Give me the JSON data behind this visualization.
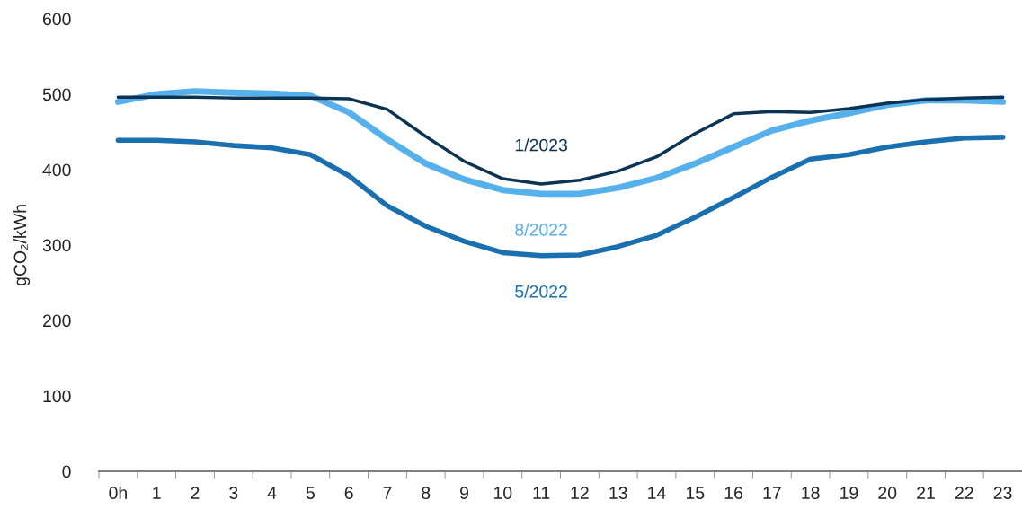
{
  "chart_data": {
    "type": "line",
    "ylabel": "gCO₂/kWh",
    "categories": [
      "0h",
      "1",
      "2",
      "3",
      "4",
      "5",
      "6",
      "7",
      "8",
      "9",
      "10",
      "11",
      "12",
      "13",
      "14",
      "15",
      "16",
      "17",
      "18",
      "19",
      "20",
      "21",
      "22",
      "23"
    ],
    "ylim": [
      0,
      600
    ],
    "yticks": [
      0,
      100,
      200,
      300,
      400,
      500,
      600
    ],
    "grid": false,
    "legend": false,
    "marker": "none",
    "line_style": "solid",
    "series": [
      {
        "name": "5/2022",
        "color": "#1a6faf",
        "values": [
          439,
          439,
          437,
          432,
          429,
          420,
          392,
          352,
          325,
          305,
          290,
          286,
          287,
          298,
          313,
          337,
          363,
          390,
          414,
          420,
          430,
          437,
          442,
          443
        ]
      },
      {
        "name": "8/2022",
        "color": "#56b0ec",
        "values": [
          490,
          500,
          504,
          502,
          501,
          498,
          476,
          440,
          408,
          387,
          373,
          368,
          368,
          376,
          389,
          408,
          430,
          452,
          465,
          475,
          486,
          492,
          492,
          490
        ]
      },
      {
        "name": "1/2023",
        "color": "#0b3354",
        "values": [
          496,
          496,
          496,
          495,
          495,
          495,
          494,
          480,
          444,
          411,
          388,
          381,
          386,
          398,
          417,
          448,
          474,
          477,
          476,
          481,
          488,
          493,
          495,
          496
        ]
      }
    ]
  }
}
